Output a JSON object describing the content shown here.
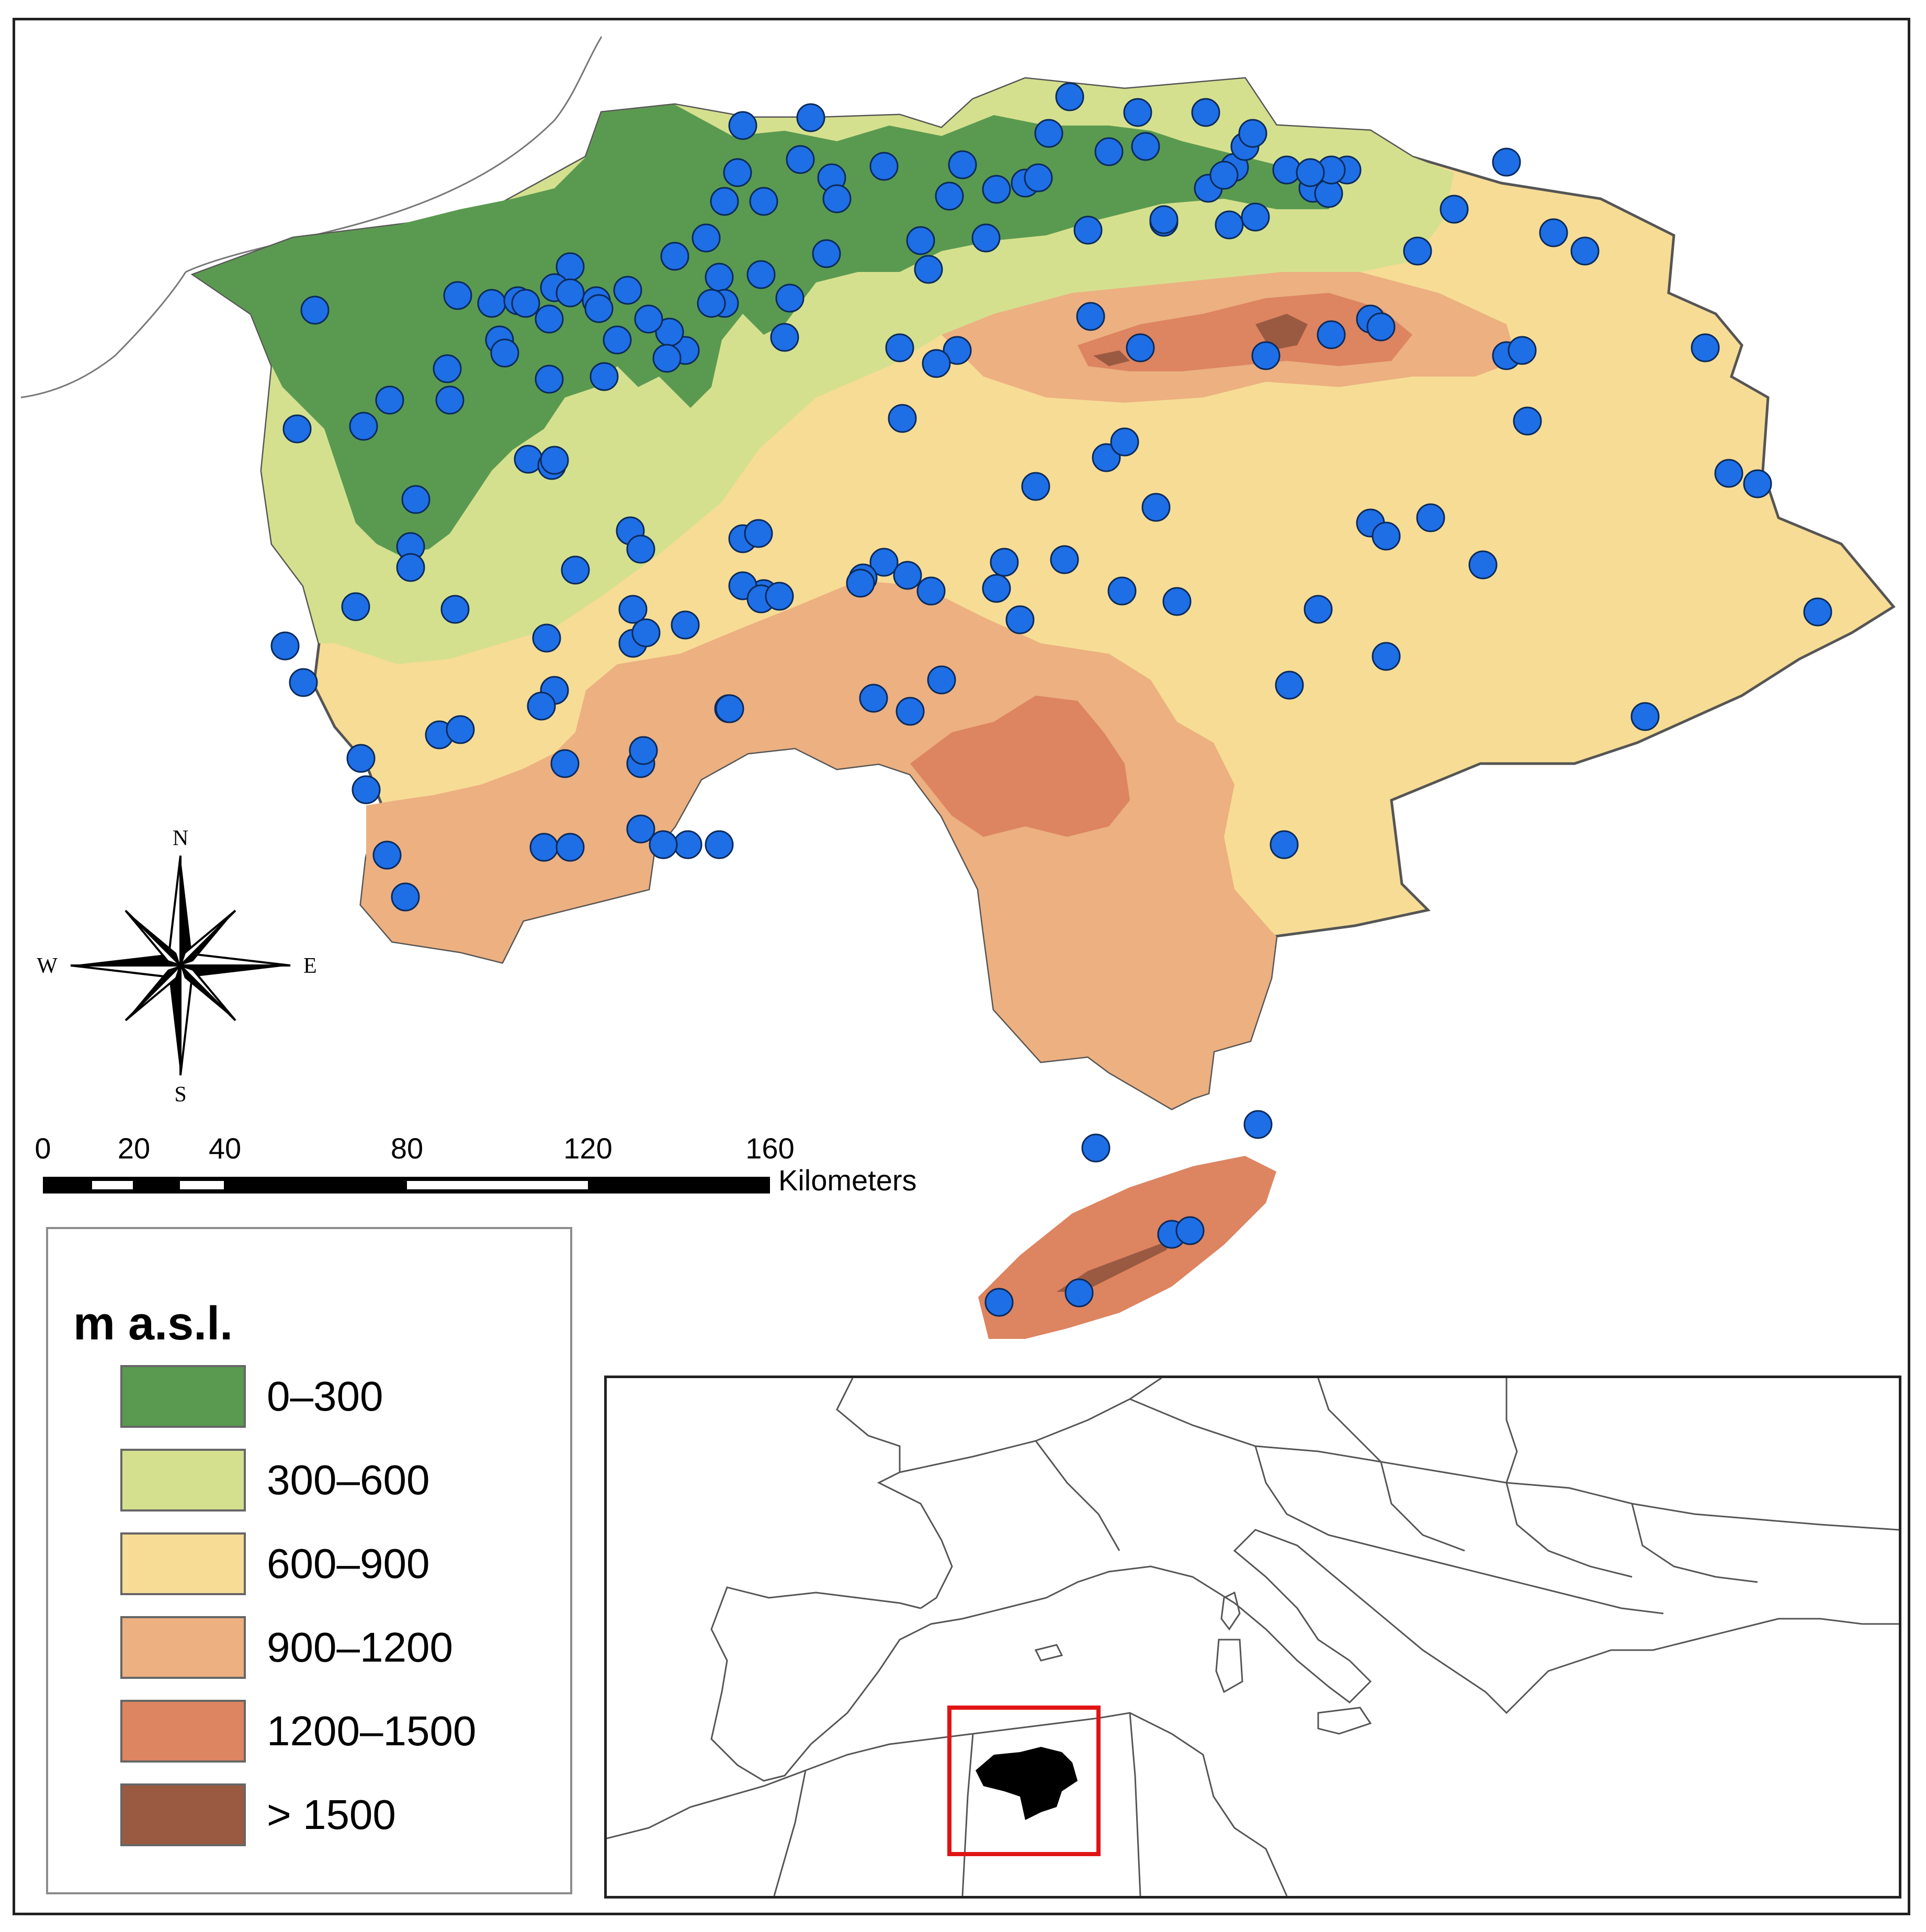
{
  "compass": {
    "north": "N",
    "south": "S",
    "east": "E",
    "west": "W"
  },
  "scale_bar": {
    "ticks": [
      "0",
      "20",
      "40",
      "80",
      "120",
      "160"
    ],
    "unit": "Kilometers"
  },
  "legend": {
    "title": "m a.s.l.",
    "items": [
      {
        "label": "0–300",
        "color": "#5a9a50"
      },
      {
        "label": "300–600",
        "color": "#d5e08e"
      },
      {
        "label": "600–900",
        "color": "#f7dc95"
      },
      {
        "label": "900–1200",
        "color": "#ecb081"
      },
      {
        "label": "1200–1500",
        "color": "#dd8460"
      },
      {
        "label": "> 1500",
        "color": "#9a5a42"
      }
    ]
  },
  "colors": {
    "station_marker": "#1e6ee6",
    "inset_highlight": "#e01414",
    "region_silhouette": "#000000"
  },
  "icons": [
    "compass-rose-icon",
    "station-marker-icon"
  ]
}
